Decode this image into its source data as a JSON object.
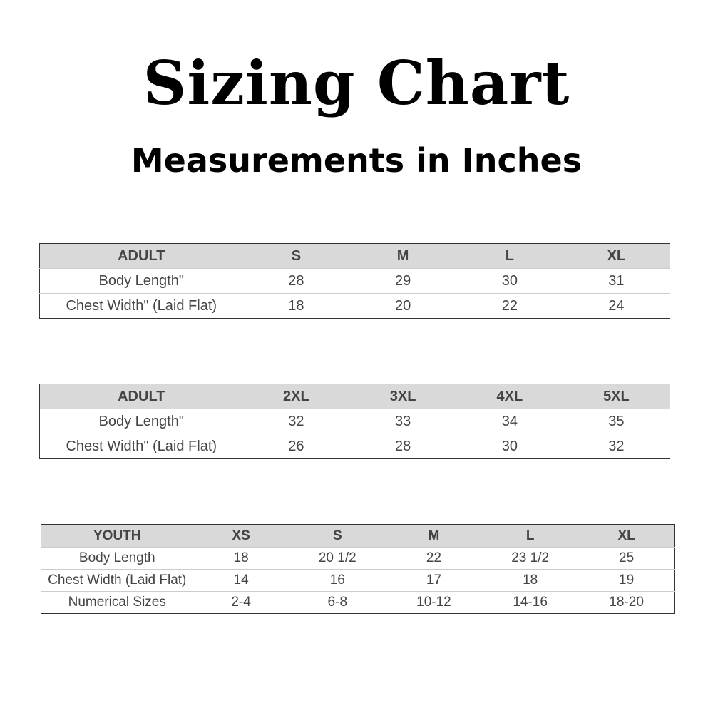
{
  "title": "Sizing Chart",
  "subtitle": "Measurements in Inches",
  "tables": [
    {
      "headers": [
        "ADULT",
        "S",
        "M",
        "L",
        "XL"
      ],
      "rows": [
        [
          "Body Length\"",
          "28",
          "29",
          "30",
          "31"
        ],
        [
          "Chest Width\" (Laid Flat)",
          "18",
          "20",
          "22",
          "24"
        ]
      ]
    },
    {
      "headers": [
        "ADULT",
        "2XL",
        "3XL",
        "4XL",
        "5XL"
      ],
      "rows": [
        [
          "Body Length\"",
          "32",
          "33",
          "34",
          "35"
        ],
        [
          "Chest Width\" (Laid Flat)",
          "26",
          "28",
          "30",
          "32"
        ]
      ]
    },
    {
      "headers": [
        "YOUTH",
        "XS",
        "S",
        "M",
        "L",
        "XL"
      ],
      "rows": [
        [
          "Body Length",
          "18",
          "20 1/2",
          "22",
          "23 1/2",
          "25"
        ],
        [
          "Chest Width (Laid Flat)",
          "14",
          "16",
          "17",
          "18",
          "19"
        ],
        [
          "Numerical Sizes",
          "2-4",
          "6-8",
          "10-12",
          "14-16",
          "18-20"
        ]
      ]
    }
  ]
}
